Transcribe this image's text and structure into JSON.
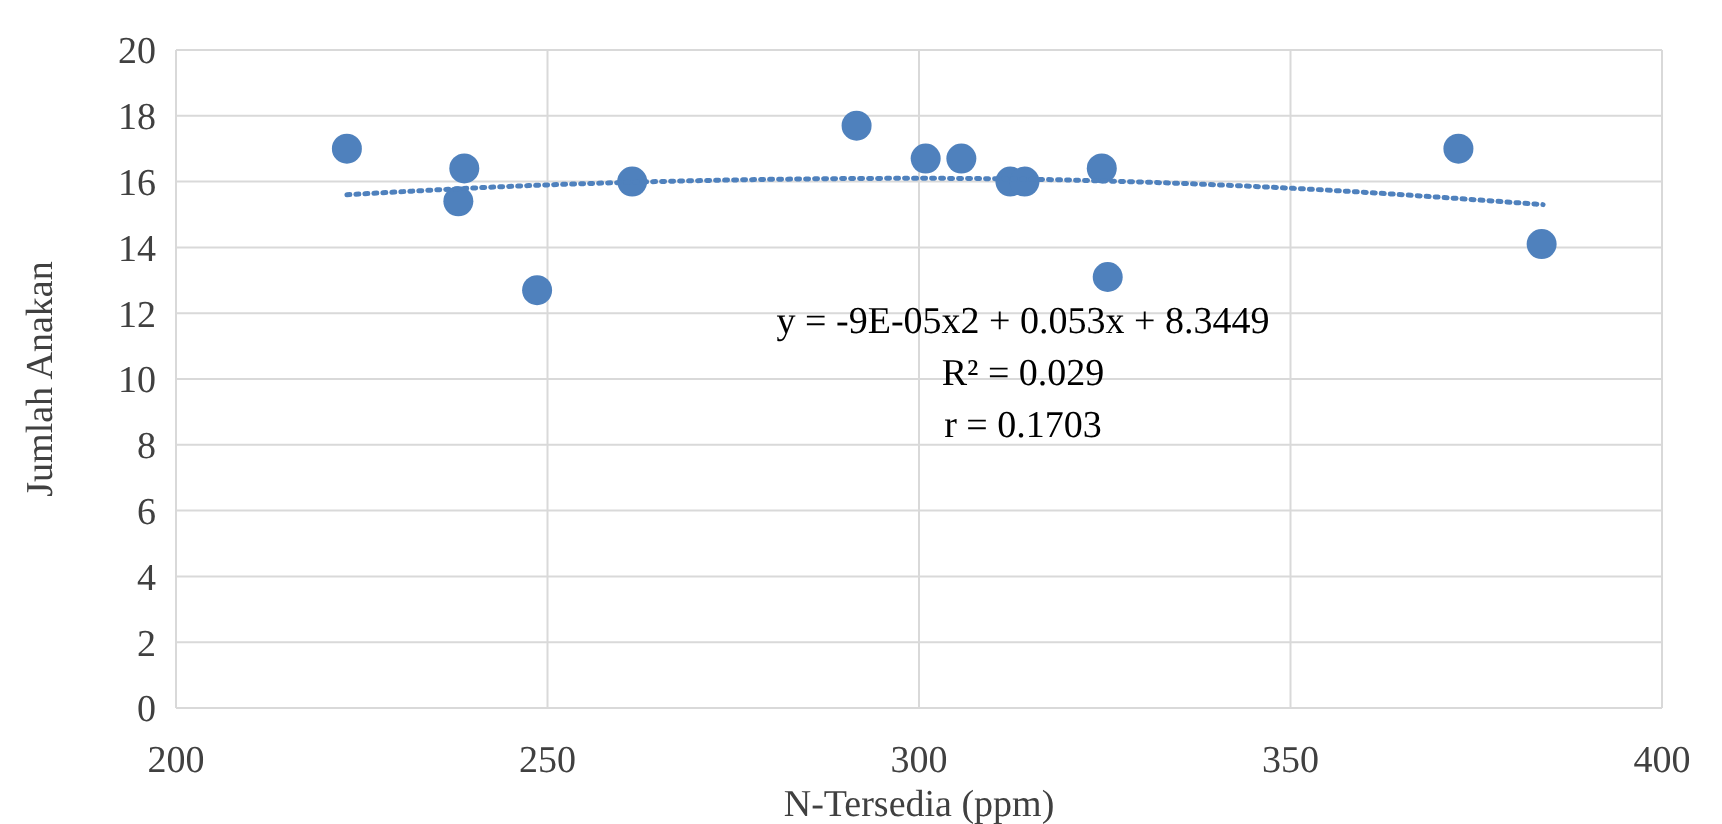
{
  "chart_data": {
    "type": "scatter",
    "xlabel": "N-Tersedia (ppm)",
    "ylabel": "Jumlah Anakan",
    "xlim": [
      200,
      400
    ],
    "xticks": [
      200,
      250,
      300,
      350,
      400
    ],
    "ylim": [
      0,
      20
    ],
    "yticks": [
      0,
      2,
      4,
      6,
      8,
      10,
      12,
      14,
      16,
      18,
      20
    ],
    "grid": true,
    "marker": "circle",
    "series": [
      {
        "color": "#4f81bd",
        "x": [
          223,
          238.8,
          238,
          248.6,
          261.4,
          291.6,
          300.9,
          305.7,
          312.3,
          314.2,
          324.6,
          325.4,
          372.6,
          383.8
        ],
        "values": [
          17,
          16.4,
          15.4,
          12.7,
          16,
          17.7,
          16.7,
          16.7,
          16,
          16,
          16.4,
          13.1,
          17,
          14.1
        ]
      },
      {
        "type": "line",
        "color": "#4f81bd",
        "line_style": "dotted",
        "marker": "none",
        "x": [
          223,
          250,
          300,
          350,
          384
        ],
        "values": [
          15.6,
          15.9,
          16.1,
          15.8,
          15.3
        ]
      }
    ],
    "annotations": [
      "y = -9E-05x2 + 0.053x + 8.3449",
      "R² = 0.029",
      "r = 0.1703"
    ]
  }
}
